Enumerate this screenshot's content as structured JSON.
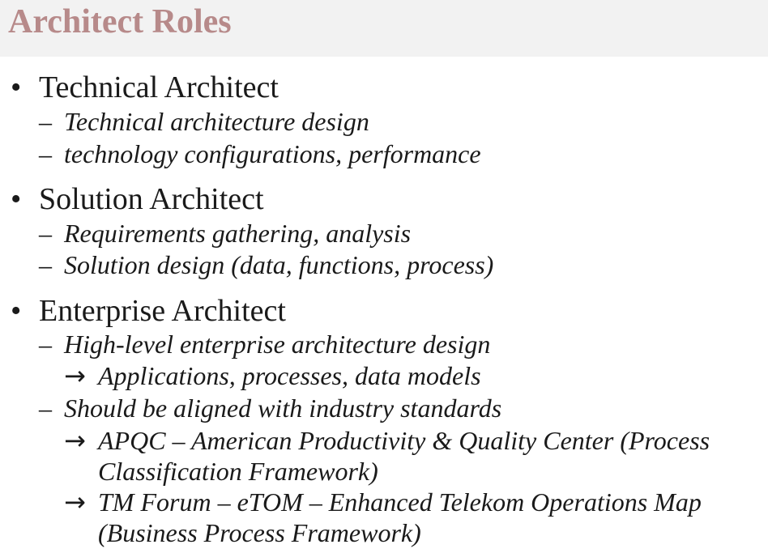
{
  "title": "Architect Roles",
  "glyphs": {
    "bullet": "•",
    "dash": "–",
    "arrow": "→"
  },
  "sections": [
    {
      "heading": "Technical Architect",
      "items": [
        {
          "text": "Technical architecture design"
        },
        {
          "text": "technology configurations, performance"
        }
      ]
    },
    {
      "heading": "Solution Architect",
      "items": [
        {
          "text": "Requirements gathering, analysis"
        },
        {
          "text": "Solution design (data, functions, process)"
        }
      ]
    },
    {
      "heading": "Enterprise Architect",
      "items": [
        {
          "text": "High-level enterprise architecture design",
          "subitems": [
            {
              "lines": [
                "Applications, processes, data models"
              ]
            }
          ]
        },
        {
          "text": "Should be aligned with industry standards",
          "subitems": [
            {
              "lines": [
                "APQC – American Productivity & Quality Center (Process",
                "Classification Framework)"
              ]
            },
            {
              "lines": [
                "TM Forum – eTOM – Enhanced Telekom Operations Map",
                "(Business Process Framework)"
              ]
            }
          ]
        }
      ]
    }
  ]
}
